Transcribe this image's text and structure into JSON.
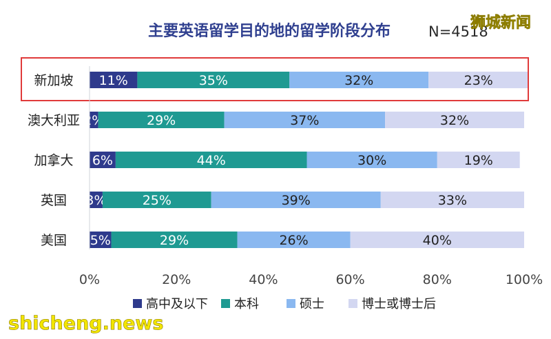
{
  "chart_data": {
    "type": "bar",
    "orientation": "horizontal",
    "stacked": true,
    "title": "主要英语留学目的地的留学阶段分布",
    "subtitle": "N=4518",
    "categories": [
      "新加坡",
      "澳大利亚",
      "加拿大",
      "英国",
      "美国"
    ],
    "highlighted_category": "新加坡",
    "series": [
      {
        "name": "高中及以下",
        "values": [
          11,
          2,
          6,
          3,
          5
        ],
        "labels": [
          "11%",
          "2%",
          "6%",
          "3%",
          "5%"
        ],
        "color": "#2e3a8c"
      },
      {
        "name": "本科",
        "values": [
          35,
          29,
          44,
          25,
          29
        ],
        "labels": [
          "35%",
          "29%",
          "44%",
          "25%",
          "29%"
        ],
        "color": "#1f9a92"
      },
      {
        "name": "硕士",
        "values": [
          32,
          37,
          30,
          39,
          26
        ],
        "labels": [
          "32%",
          "37%",
          "30%",
          "39%",
          "26%"
        ],
        "color": "#8ab8f0"
      },
      {
        "name": "博士或博士后",
        "values": [
          23,
          32,
          19,
          33,
          40
        ],
        "labels": [
          "23%",
          "32%",
          "19%",
          "33%",
          "40%"
        ],
        "color": "#d3d7f1"
      }
    ],
    "xlim": [
      0,
      100
    ],
    "xticks": [
      "0%",
      "20%",
      "40%",
      "60%",
      "80%",
      "100%"
    ],
    "grid": false,
    "legend_position": "bottom"
  },
  "watermarks": {
    "top_right": "狮城新闻",
    "bottom_left": "shicheng.news"
  },
  "colors": {
    "title": "#2f3f8f",
    "highlight_box": "#e03a3a"
  }
}
